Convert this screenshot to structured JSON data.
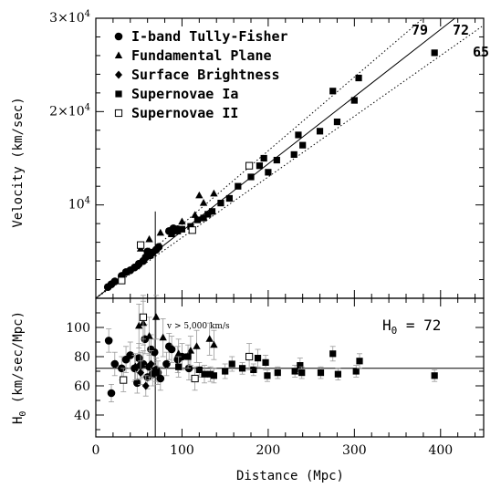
{
  "chart_data": [
    {
      "type": "scatter",
      "panel": "top",
      "xlabel": "",
      "ylabel": "Velocity (km/sec)",
      "xlim": [
        0,
        450
      ],
      "ylim": [
        0,
        30000
      ],
      "y_ticks": [
        {
          "value": 10000,
          "base": "10",
          "exp": "4",
          "mult": ""
        },
        {
          "value": 20000,
          "base": "10",
          "exp": "4",
          "mult": "2×"
        },
        {
          "value": 30000,
          "base": "10",
          "exp": "4",
          "mult": "3×"
        }
      ],
      "lines": [
        {
          "label": "79",
          "slope": 79,
          "style": "dotted"
        },
        {
          "label": "72",
          "slope": 72,
          "style": "solid"
        },
        {
          "label": "65",
          "slope": 65,
          "style": "dotted"
        }
      ],
      "vline_x": 69,
      "legend": [
        {
          "marker": "circle",
          "label": "I-band Tully-Fisher"
        },
        {
          "marker": "triangle",
          "label": "Fundamental Plane"
        },
        {
          "marker": "diamond",
          "label": "Surface Brightness"
        },
        {
          "marker": "square",
          "label": "Supernovae Ia"
        },
        {
          "marker": "open-square",
          "label": "Supernovae II"
        }
      ],
      "series": [
        {
          "marker": "circle",
          "points": [
            [
              14,
              1200
            ],
            [
              18,
              1500
            ],
            [
              22,
              1800
            ],
            [
              30,
              2400
            ],
            [
              35,
              2800
            ],
            [
              40,
              3000
            ],
            [
              45,
              3300
            ],
            [
              50,
              3700
            ],
            [
              55,
              4000
            ],
            [
              58,
              4400
            ],
            [
              60,
              5000
            ],
            [
              63,
              4600
            ],
            [
              66,
              4900
            ],
            [
              70,
              5200
            ],
            [
              73,
              5500
            ],
            [
              85,
              7200
            ],
            [
              90,
              7500
            ],
            [
              95,
              7400
            ]
          ]
        },
        {
          "marker": "triangle",
          "points": [
            [
              52,
              5300
            ],
            [
              62,
              6300
            ],
            [
              75,
              7000
            ],
            [
              100,
              8200
            ],
            [
              115,
              8900
            ],
            [
              125,
              10200
            ],
            [
              137,
              11200
            ],
            [
              120,
              11000
            ]
          ]
        },
        {
          "marker": "diamond",
          "points": [
            [
              16,
              1300
            ],
            [
              50,
              3500
            ],
            [
              55,
              4100
            ],
            [
              62,
              5000
            ]
          ]
        },
        {
          "marker": "square",
          "points": [
            [
              88,
              6900
            ],
            [
              95,
              7200
            ],
            [
              100,
              7400
            ],
            [
              110,
              7700
            ],
            [
              118,
              8400
            ],
            [
              125,
              8600
            ],
            [
              130,
              9000
            ],
            [
              135,
              9300
            ],
            [
              145,
              10200
            ],
            [
              155,
              10700
            ],
            [
              165,
              12000
            ],
            [
              180,
              13000
            ],
            [
              190,
              14200
            ],
            [
              195,
              15000
            ],
            [
              200,
              13500
            ],
            [
              210,
              14800
            ],
            [
              230,
              15400
            ],
            [
              235,
              17500
            ],
            [
              240,
              16400
            ],
            [
              260,
              17900
            ],
            [
              275,
              22200
            ],
            [
              280,
              18900
            ],
            [
              300,
              21200
            ],
            [
              305,
              23600
            ],
            [
              393,
              26300
            ]
          ]
        },
        {
          "marker": "open-square",
          "points": [
            [
              30,
              1900
            ],
            [
              52,
              5700
            ],
            [
              112,
              7300
            ],
            [
              178,
              14200
            ]
          ]
        }
      ]
    },
    {
      "type": "scatter",
      "panel": "bottom",
      "xlabel": "Distance (Mpc)",
      "ylabel": "H0 (km/sec/Mpc)",
      "ylabel_main": "H",
      "ylabel_sub": "0",
      "ylabel_rest": " (km/sec/Mpc)",
      "xlim": [
        0,
        450
      ],
      "ylim": [
        25,
        120
      ],
      "x_ticks": [
        0,
        100,
        200,
        300,
        400
      ],
      "y_ticks": [
        40,
        60,
        80,
        100
      ],
      "hline_y": 72,
      "vline_x": 69,
      "annotation": "v > 5,000 km/s",
      "inset_label": {
        "main": "H",
        "sub": "0",
        "rest": " = 72"
      },
      "series": [
        {
          "marker": "circle",
          "points": [
            [
              15,
              91,
              8
            ],
            [
              18,
              55,
              6
            ],
            [
              22,
              75,
              8
            ],
            [
              30,
              72,
              8
            ],
            [
              35,
              78,
              9
            ],
            [
              40,
              81,
              9
            ],
            [
              45,
              72,
              9
            ],
            [
              48,
              62,
              7
            ],
            [
              50,
              79,
              10
            ],
            [
              52,
              74,
              9
            ],
            [
              55,
              75,
              9
            ],
            [
              57,
              92,
              10
            ],
            [
              60,
              66,
              8
            ],
            [
              62,
              73,
              9
            ],
            [
              64,
              85,
              10
            ],
            [
              66,
              68,
              8
            ],
            [
              68,
              83,
              9
            ],
            [
              70,
              71,
              8
            ],
            [
              72,
              69,
              8
            ],
            [
              75,
              65,
              8
            ],
            [
              82,
              75,
              8
            ],
            [
              85,
              87,
              9
            ],
            [
              88,
              85,
              9
            ],
            [
              95,
              78,
              9
            ],
            [
              100,
              80,
              9
            ],
            [
              108,
              72,
              8
            ]
          ]
        },
        {
          "marker": "triangle",
          "points": [
            [
              50,
              101,
              15
            ],
            [
              55,
              103,
              15
            ],
            [
              62,
              94,
              13
            ],
            [
              70,
              107,
              15
            ],
            [
              78,
              93,
              13
            ],
            [
              96,
              82,
              10
            ],
            [
              110,
              84,
              10
            ],
            [
              117,
              87,
              11
            ],
            [
              132,
              92,
              11
            ],
            [
              137,
              88,
              10
            ]
          ]
        },
        {
          "marker": "diamond",
          "points": [
            [
              46,
              73,
              9
            ],
            [
              52,
              69,
              8
            ],
            [
              58,
              60,
              7
            ],
            [
              64,
              75,
              9
            ]
          ]
        },
        {
          "marker": "square",
          "points": [
            [
              96,
              73,
              7
            ],
            [
              107,
              80,
              8
            ],
            [
              120,
              71,
              5
            ],
            [
              126,
              68,
              6
            ],
            [
              133,
              68,
              5
            ],
            [
              137,
              67,
              5
            ],
            [
              150,
              70,
              5
            ],
            [
              158,
              75,
              5
            ],
            [
              170,
              72,
              4
            ],
            [
              183,
              71,
              4
            ],
            [
              188,
              79,
              6
            ],
            [
              197,
              76,
              5
            ],
            [
              199,
              67,
              4
            ],
            [
              211,
              69,
              4
            ],
            [
              231,
              70,
              4
            ],
            [
              237,
              74,
              5
            ],
            [
              239,
              69,
              4
            ],
            [
              261,
              69,
              4
            ],
            [
              275,
              82,
              5
            ],
            [
              281,
              68,
              4
            ],
            [
              302,
              70,
              4
            ],
            [
              306,
              77,
              5
            ],
            [
              393,
              67,
              4
            ]
          ]
        },
        {
          "marker": "open-square",
          "points": [
            [
              32,
              64,
              8
            ],
            [
              55,
              107,
              15
            ],
            [
              115,
              65,
              8
            ],
            [
              178,
              80,
              9
            ]
          ]
        }
      ]
    }
  ]
}
